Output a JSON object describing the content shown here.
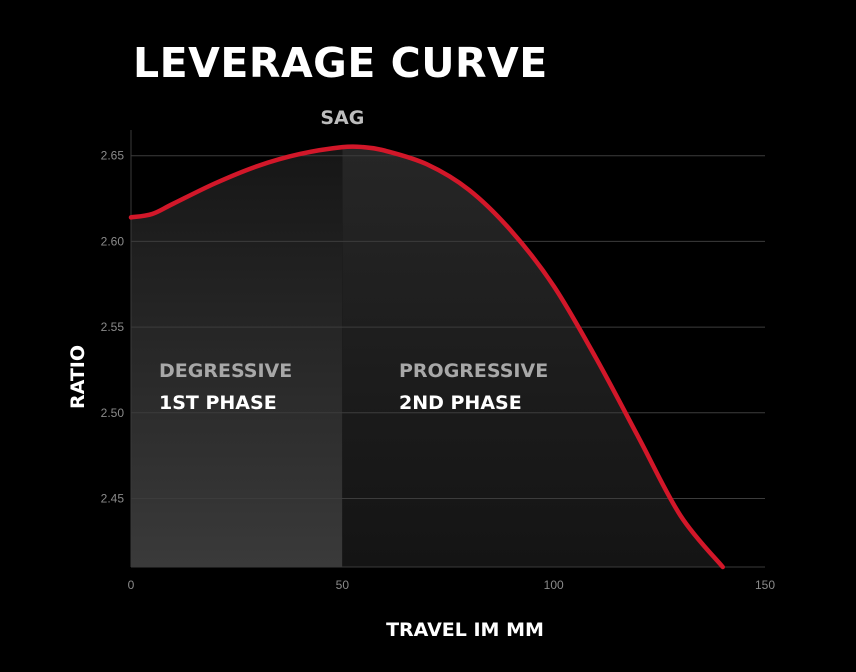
{
  "chart_data": {
    "type": "area",
    "title": "LEVERAGE CURVE",
    "xlabel": "TRAVEL IM MM",
    "ylabel": "RATIO",
    "xlim": [
      0,
      150
    ],
    "ylim": [
      2.41,
      2.665
    ],
    "x_ticks": [
      0,
      50,
      100,
      150
    ],
    "y_ticks": [
      2.45,
      2.5,
      2.55,
      2.6,
      2.65
    ],
    "y_tick_labels": [
      "2.45",
      "2.50",
      "2.55",
      "2.60",
      "2.65"
    ],
    "grid": "horizontal",
    "line_color": "#d21729",
    "sag": {
      "label": "SAG",
      "x": 50
    },
    "phases": [
      {
        "name": "DEGRESSIVE",
        "phase": "1ST PHASE",
        "x_range": [
          0,
          50
        ]
      },
      {
        "name": "PROGRESSIVE",
        "phase": "2ND PHASE",
        "x_range": [
          50,
          140
        ]
      }
    ],
    "series": [
      {
        "x": [
          0,
          5,
          10,
          20,
          30,
          40,
          50,
          55,
          60,
          70,
          80,
          90,
          100,
          110,
          120,
          130,
          140
        ],
        "values": [
          2.614,
          2.616,
          2.622,
          2.634,
          2.644,
          2.651,
          2.655,
          2.655,
          2.653,
          2.645,
          2.63,
          2.606,
          2.574,
          2.532,
          2.486,
          2.44,
          2.41
        ]
      }
    ]
  }
}
